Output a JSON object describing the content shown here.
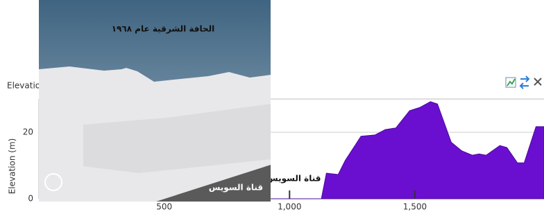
{
  "panel": {
    "title": "Elevation"
  },
  "overlay": {
    "title": "الحافة الشرقية عام ١٩٦٨",
    "label": "قناة السويس"
  },
  "chart_data": {
    "type": "area",
    "y_label": "Elevation (m)",
    "color": "#6a0fd0",
    "x": [
      925,
      1127,
      1147,
      1194,
      1222,
      1285,
      1341,
      1382,
      1424,
      1479,
      1521,
      1562,
      1590,
      1645,
      1687,
      1729,
      1756,
      1784,
      1839,
      1867,
      1909,
      1936,
      1983,
      2015
    ],
    "values": [
      0,
      0,
      7.7,
      7.3,
      11.5,
      18.8,
      19.2,
      20.8,
      21.3,
      26.5,
      27.5,
      29.2,
      28.5,
      17,
      14.4,
      13.1,
      13.5,
      13.1,
      16,
      15.4,
      10.8,
      10.8,
      21.7,
      21.7
    ],
    "xlim": [
      0,
      2015
    ],
    "ylim": [
      0,
      30
    ],
    "xticks": [
      500,
      {
        "value": 1000,
        "label": "1,000"
      },
      {
        "value": 1500,
        "label": "1,500"
      }
    ],
    "yticks": [
      0,
      20
    ],
    "grid": true,
    "annotations": [
      "قناة السويس"
    ]
  }
}
